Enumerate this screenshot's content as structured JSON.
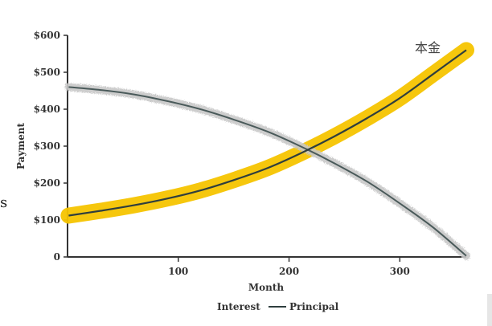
{
  "chart_data": {
    "type": "line",
    "title": "",
    "xlabel": "Month",
    "ylabel": "Payment",
    "xlim": [
      0,
      360
    ],
    "ylim": [
      0,
      600
    ],
    "x_ticks": [
      100,
      200,
      300
    ],
    "y_ticks": [
      0,
      100,
      200,
      300,
      400,
      500,
      600
    ],
    "y_tick_labels": [
      "0",
      "$100",
      "$200",
      "$300",
      "$400",
      "$500",
      "$600"
    ],
    "grid": false,
    "legend_position": "bottom",
    "series": [
      {
        "name": "Interest",
        "color": "#888888",
        "x": [
          1,
          30,
          60,
          90,
          120,
          150,
          180,
          210,
          240,
          270,
          300,
          330,
          360
        ],
        "y": [
          460,
          452,
          440,
          422,
          400,
          372,
          340,
          300,
          255,
          205,
          145,
          80,
          3
        ]
      },
      {
        "name": "Principal",
        "color": "#2f3e3e",
        "highlight_color": "#f5c400",
        "x": [
          1,
          30,
          60,
          90,
          120,
          150,
          180,
          210,
          240,
          270,
          300,
          330,
          360
        ],
        "y": [
          112,
          125,
          140,
          158,
          180,
          208,
          240,
          280,
          325,
          375,
          430,
          495,
          560
        ]
      }
    ],
    "annotations": [
      {
        "text": "本金",
        "x": 340,
        "y": 580
      }
    ]
  },
  "page": {
    "edge_letter": "s"
  }
}
